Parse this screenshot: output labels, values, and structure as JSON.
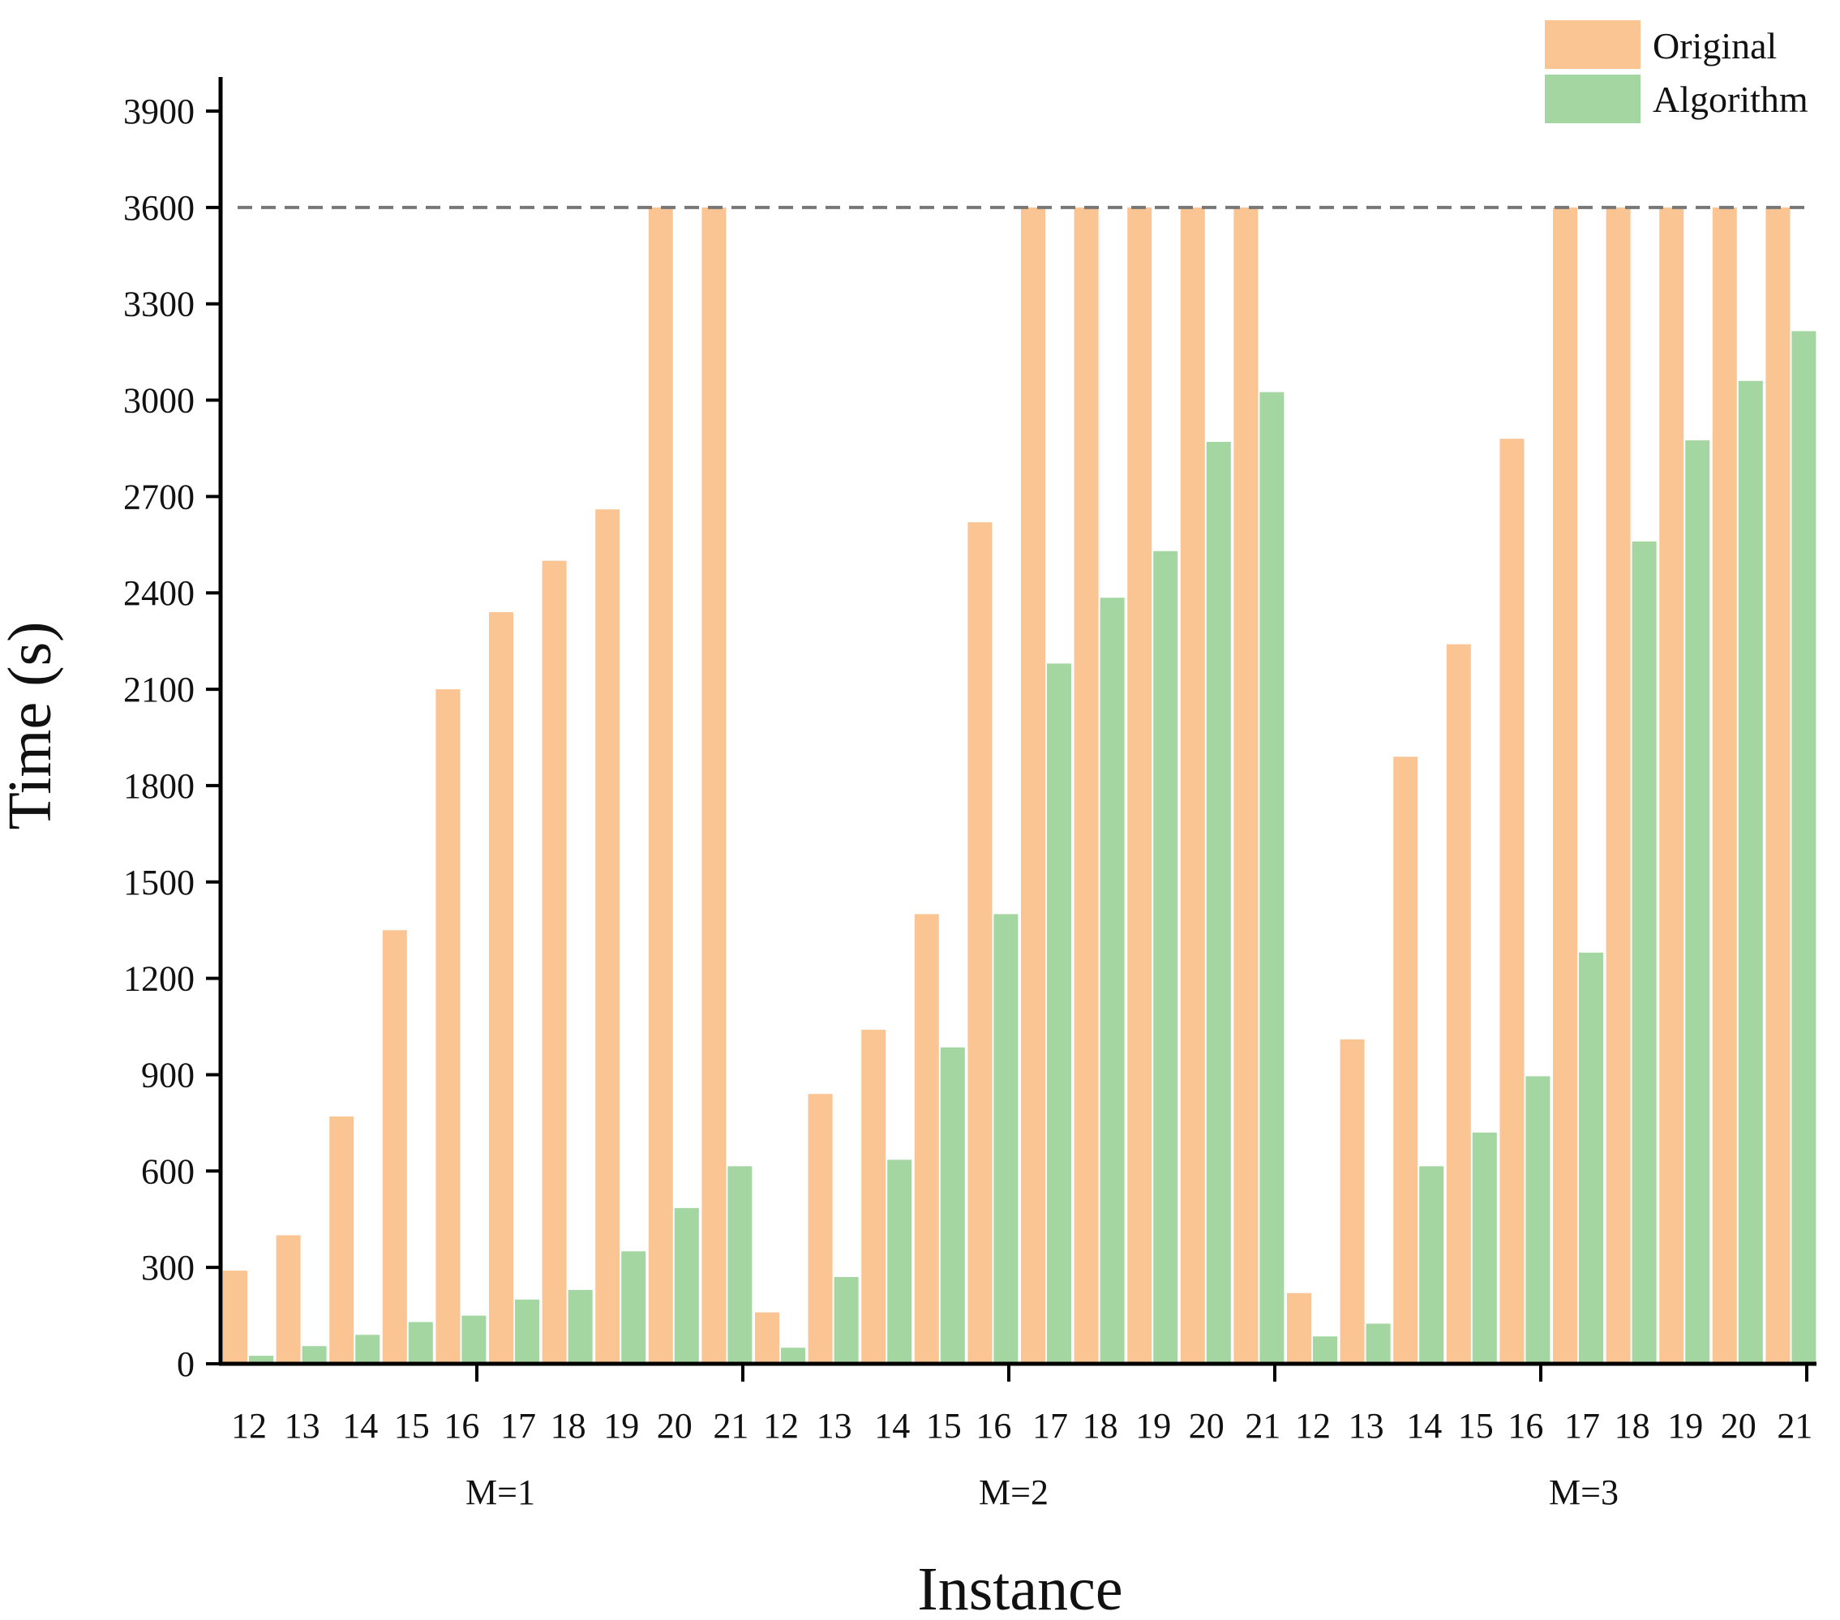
{
  "chart_data": {
    "type": "bar",
    "title": "",
    "xlabel": "Instance",
    "ylabel": "Time (s)",
    "ylim": [
      0,
      4000
    ],
    "yticks": [
      0,
      300,
      600,
      900,
      1200,
      1500,
      1800,
      2100,
      2400,
      2700,
      3000,
      3300,
      3600,
      3900
    ],
    "reference_line": {
      "value": 3600,
      "style": "dashed"
    },
    "groups": [
      "M=1",
      "M=2",
      "M=3"
    ],
    "categories": [
      "12",
      "13",
      "14",
      "15",
      "16",
      "17",
      "18",
      "19",
      "20",
      "21"
    ],
    "legend": {
      "position": "top-right"
    },
    "series": [
      {
        "name": "Original",
        "color": "#fbc493",
        "values": [
          [
            290,
            400,
            770,
            1350,
            2100,
            2340,
            2500,
            2660,
            3600,
            3600
          ],
          [
            160,
            840,
            1040,
            1400,
            2620,
            3600,
            3600,
            3600,
            3600,
            3600
          ],
          [
            220,
            1010,
            1890,
            2240,
            2880,
            3600,
            3600,
            3600,
            3600,
            3600
          ]
        ]
      },
      {
        "name": "Algorithm",
        "color": "#a3d6a1",
        "values": [
          [
            25,
            55,
            90,
            130,
            150,
            200,
            230,
            350,
            485,
            615
          ],
          [
            50,
            270,
            635,
            985,
            1400,
            2180,
            2385,
            2530,
            2870,
            3025
          ],
          [
            85,
            125,
            615,
            720,
            895,
            1280,
            2560,
            2875,
            3060,
            3215
          ]
        ]
      }
    ]
  }
}
